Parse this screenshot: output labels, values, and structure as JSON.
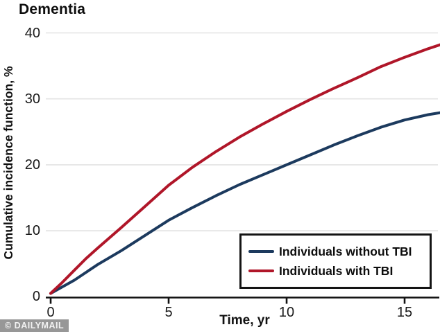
{
  "title": "Dementia",
  "watermark": "© DAILYMAIL",
  "chart_data": {
    "type": "line",
    "title": "Dementia",
    "xlabel": "Time, yr",
    "ylabel": "Cumulative incidence function, %",
    "xlim": [
      0,
      16.5
    ],
    "ylim": [
      0,
      40
    ],
    "x_ticks": [
      0,
      5,
      10,
      15
    ],
    "y_ticks": [
      0,
      10,
      20,
      30,
      40
    ],
    "grid": "horizontal-light-gray",
    "legend_position": "bottom-right-box",
    "series": [
      {
        "name": "Individuals without TBI",
        "color": "#1c3a5e",
        "x": [
          0,
          0.5,
          1,
          1.5,
          2,
          3,
          4,
          5,
          6,
          7,
          8,
          9,
          10,
          11,
          12,
          13,
          14,
          15,
          16,
          16.5
        ],
        "y": [
          0.5,
          1.5,
          2.5,
          3.7,
          4.9,
          7.0,
          9.3,
          11.6,
          13.5,
          15.3,
          17.0,
          18.5,
          20.0,
          21.5,
          23.0,
          24.4,
          25.7,
          26.8,
          27.6,
          27.9
        ]
      },
      {
        "name": "Individuals with TBI",
        "color": "#b01629",
        "x": [
          0,
          0.5,
          1,
          1.5,
          2,
          3,
          4,
          5,
          6,
          7,
          8,
          9,
          10,
          11,
          12,
          13,
          14,
          15,
          16,
          16.5
        ],
        "y": [
          0.5,
          2.2,
          4.0,
          5.8,
          7.4,
          10.5,
          13.7,
          16.9,
          19.6,
          22.0,
          24.2,
          26.2,
          28.1,
          29.9,
          31.6,
          33.2,
          34.9,
          36.3,
          37.6,
          38.2
        ]
      }
    ]
  }
}
